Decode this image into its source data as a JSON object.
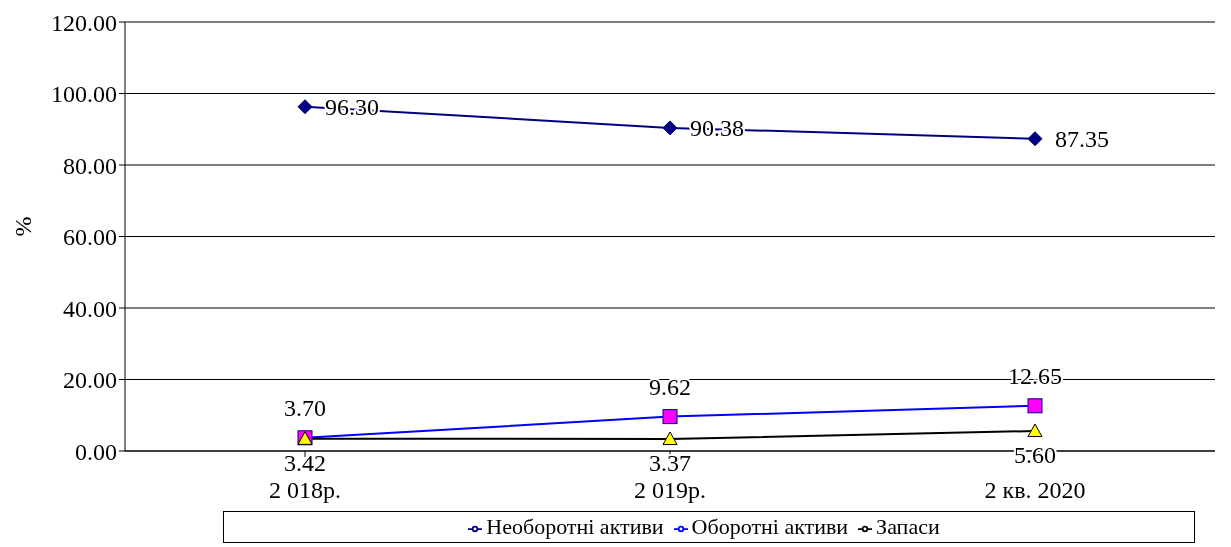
{
  "chart_data": {
    "type": "line",
    "ylabel": "%",
    "categories": [
      "2 018р.",
      "2 019р.",
      "2 кв. 2020"
    ],
    "series": [
      {
        "name": "Необоротні активи",
        "color": "#000080",
        "marker": "diamond",
        "values": [
          96.3,
          90.38,
          87.35
        ],
        "value_labels": [
          "96.30",
          "90.38",
          "87.35"
        ]
      },
      {
        "name": "Оборотні активи",
        "color": "#0000ff",
        "marker": "square",
        "values": [
          3.7,
          9.62,
          12.65
        ],
        "value_labels": [
          "3.70",
          "9.62",
          "12.65"
        ]
      },
      {
        "name": "Запаси",
        "color": "#000000",
        "marker": "triangle",
        "values": [
          3.42,
          3.37,
          5.6
        ],
        "value_labels": [
          "3.42",
          "3.37",
          "5.60"
        ]
      }
    ],
    "ylim": [
      0,
      120
    ],
    "yticks": [
      {
        "value": 0,
        "label": "0.00"
      },
      {
        "value": 20,
        "label": "20.00"
      },
      {
        "value": 40,
        "label": "40.00"
      },
      {
        "value": 60,
        "label": "60.00"
      },
      {
        "value": 80,
        "label": "80.00"
      },
      {
        "value": 100,
        "label": "100.00"
      },
      {
        "value": 120,
        "label": "120.00"
      }
    ],
    "grid": "y",
    "legend": "bottom"
  }
}
